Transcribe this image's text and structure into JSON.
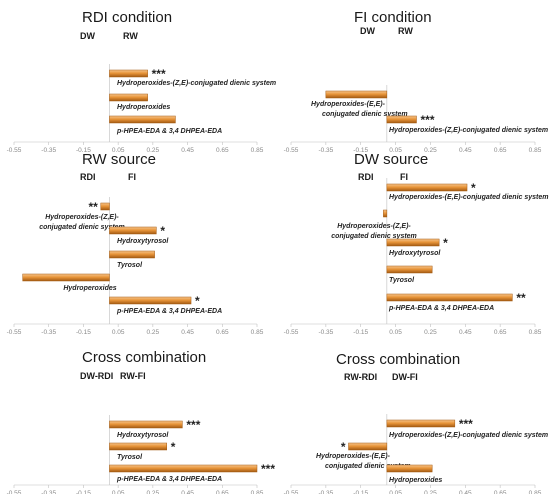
{
  "colors": {
    "bar_fill": "#e8953a",
    "bar_edge": "#a35a12",
    "bar_highlight": "#f6c48c",
    "axis": "#bfbfbf",
    "tick": "#8a8a8a"
  },
  "chart_data": [
    {
      "type": "bar",
      "orientation": "horizontal",
      "title": "RDI condition",
      "group_left": "DW",
      "group_right": "RW",
      "xlim": [
        -0.55,
        0.85
      ],
      "ticks": [
        "-0.55",
        "-0.35",
        "-0.15",
        "0.05",
        "0.25",
        "0.45",
        "0.65",
        "0.85"
      ],
      "bars": [
        {
          "label": "Hydroperoxides-(Z,E)-conjugated dienic system",
          "value": 0.22,
          "sig": "***"
        },
        {
          "label": "Hydroperoxides",
          "value": 0.22,
          "sig": ""
        },
        {
          "label": "p-HPEA-EDA & 3,4 DHPEA-EDA",
          "value": 0.38,
          "sig": ""
        }
      ]
    },
    {
      "type": "bar",
      "orientation": "horizontal",
      "title": "FI condition",
      "group_left": "DW",
      "group_right": "RW",
      "xlim": [
        -0.55,
        0.85
      ],
      "ticks": [
        "-0.55",
        "-0.35",
        "-0.15",
        "0.05",
        "0.25",
        "0.45",
        "0.65",
        "0.85"
      ],
      "bars": [
        {
          "label": "Hydroperoxides-(E,E)-conjugated dienic system",
          "value": -0.35,
          "sig": ""
        },
        {
          "label": "Hydroperoxides-(Z,E)-conjugated dienic system",
          "value": 0.17,
          "sig": "***"
        }
      ]
    },
    {
      "type": "bar",
      "orientation": "horizontal",
      "title": "RW source",
      "group_left": "RDI",
      "group_right": "FI",
      "xlim": [
        -0.55,
        0.85
      ],
      "ticks": [
        "-0.55",
        "-0.35",
        "-0.15",
        "0.05",
        "0.25",
        "0.45",
        "0.65",
        "0.85"
      ],
      "bars": [
        {
          "label": "Hydroperoxides-(Z,E)-conjugated dienic system",
          "value": -0.05,
          "sig": "**"
        },
        {
          "label": "Hydroxytyrosol",
          "value": 0.27,
          "sig": "*"
        },
        {
          "label": "Tyrosol",
          "value": 0.26,
          "sig": ""
        },
        {
          "label": "Hydroperoxides",
          "value": -0.5,
          "sig": ""
        },
        {
          "label": "p-HPEA-EDA & 3,4 DHPEA-EDA",
          "value": 0.47,
          "sig": "*"
        }
      ]
    },
    {
      "type": "bar",
      "orientation": "horizontal",
      "title": "DW source",
      "group_left": "RDI",
      "group_right": "FI",
      "xlim": [
        -0.55,
        0.85
      ],
      "ticks": [
        "-0.55",
        "-0.35",
        "-0.15",
        "0.05",
        "0.25",
        "0.45",
        "0.65",
        "0.85"
      ],
      "bars": [
        {
          "label": "Hydroperoxides-(E,E)-conjugated dienic system",
          "value": 0.46,
          "sig": "*"
        },
        {
          "label": "Hydroperoxides-(Z,E)-conjugated dienic system",
          "value": -0.02,
          "sig": ""
        },
        {
          "label": "Hydroxytyrosol",
          "value": 0.3,
          "sig": "*"
        },
        {
          "label": "Tyrosol",
          "value": 0.26,
          "sig": ""
        },
        {
          "label": "p-HPEA-EDA & 3,4 DHPEA-EDA",
          "value": 0.72,
          "sig": "**"
        }
      ]
    },
    {
      "type": "bar",
      "orientation": "horizontal",
      "title": "Cross combination",
      "group_left": "DW-RDI",
      "group_right": "RW-FI",
      "xlim": [
        -0.55,
        0.85
      ],
      "ticks": [
        "-0.55",
        "-0.35",
        "-0.15",
        "0.05",
        "0.25",
        "0.45",
        "0.65",
        "0.85"
      ],
      "bars": [
        {
          "label": "Hydroxytyrosol",
          "value": 0.42,
          "sig": "***"
        },
        {
          "label": "Tyrosol",
          "value": 0.33,
          "sig": "*"
        },
        {
          "label": "p-HPEA-EDA & 3,4 DHPEA-EDA",
          "value": 0.85,
          "sig": "***"
        }
      ]
    },
    {
      "type": "bar",
      "orientation": "horizontal",
      "title": "Cross combination",
      "group_left": "RW-RDI",
      "group_right": "DW-FI",
      "xlim": [
        -0.55,
        0.85
      ],
      "ticks": [
        "-0.55",
        "-0.35",
        "-0.15",
        "0.05",
        "0.25",
        "0.45",
        "0.65",
        "0.85"
      ],
      "bars": [
        {
          "label": "Hydroperoxides-(Z,E)-conjugated dienic system",
          "value": 0.39,
          "sig": "***"
        },
        {
          "label": "Hydroperoxides-(E,E)-conjugated dienic system",
          "value": -0.22,
          "sig": "*"
        },
        {
          "label": "Hydroperoxides",
          "value": 0.26,
          "sig": ""
        }
      ]
    }
  ]
}
